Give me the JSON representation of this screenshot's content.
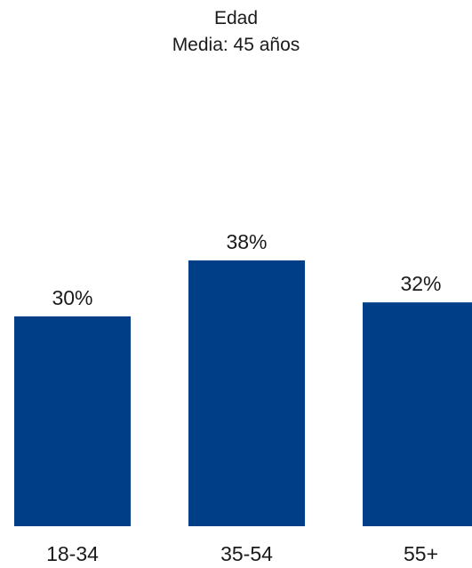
{
  "chart_data": {
    "type": "bar",
    "title": "Edad",
    "subtitle": "Media: 45 años",
    "categories": [
      "18-34",
      "35-54",
      "55+"
    ],
    "values": [
      30,
      38,
      32
    ],
    "value_labels": [
      "30%",
      "38%",
      "32%"
    ],
    "unit": "%",
    "bar_color": "#003F87",
    "grid": false,
    "legend": "none"
  }
}
